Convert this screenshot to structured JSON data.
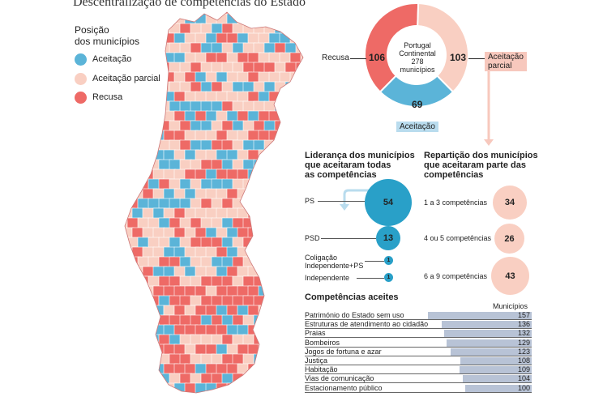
{
  "title": "Descentralização de competências do Estado",
  "legend": {
    "title_line1": "Posição",
    "title_line2": "dos municípios",
    "items": [
      {
        "label": "Aceitação",
        "color": "#5bb4d8"
      },
      {
        "label": "Aceitação parcial",
        "color": "#f9cfc2"
      },
      {
        "label": "Recusa",
        "color": "#ee6a66"
      }
    ]
  },
  "donut": {
    "center_line1": "Portugal",
    "center_line2": "Continental",
    "center_line3": "278",
    "center_line4": "municípios",
    "recusa_label": "Recusa",
    "parcial_label_1": "Aceitação",
    "parcial_label_2": "parcial",
    "aceitacao_label": "Aceitação",
    "values": {
      "recusa": 106,
      "parcial": 103,
      "aceitacao": 69
    }
  },
  "leadership": {
    "title_1": "Liderança dos municípios",
    "title_2": "que aceitaram todas",
    "title_3": "as competências",
    "items": [
      {
        "label": "PS",
        "value": 54
      },
      {
        "label": "PSD",
        "value": 13
      },
      {
        "label_1": "Coligação",
        "label_2": "Independente+PS",
        "value": 1
      },
      {
        "label": "Independente",
        "value": 1
      }
    ]
  },
  "partial": {
    "title_1": "Repartição dos municípios",
    "title_2": "que aceitaram parte das",
    "title_3": "competências",
    "items": [
      {
        "label": "1 a 3 competências",
        "value": 34
      },
      {
        "label": "4 ou 5 competências",
        "value": 26
      },
      {
        "label": "6 a 9 competências",
        "value": 43
      }
    ]
  },
  "competencias": {
    "title": "Competências aceites",
    "subtitle": "Municípios"
  },
  "colors": {
    "aceitacao": "#5bb4d8",
    "parcial": "#f9cfc2",
    "recusa": "#ee6a66",
    "bubble_blue": "#29a0c8",
    "bar": "#b8c3d6"
  },
  "chart_data": [
    {
      "type": "pie",
      "title": "Portugal Continental 278 municípios",
      "categories": [
        "Recusa",
        "Aceitação parcial",
        "Aceitação"
      ],
      "values": [
        106,
        103,
        69
      ]
    },
    {
      "type": "scatter",
      "title": "Liderança dos municípios que aceitaram todas as competências",
      "categories": [
        "PS",
        "PSD",
        "Coligação Independente+PS",
        "Independente"
      ],
      "values": [
        54,
        13,
        1,
        1
      ]
    },
    {
      "type": "scatter",
      "title": "Repartição dos municípios que aceitaram parte das competências",
      "categories": [
        "1 a 3 competências",
        "4 ou 5 competências",
        "6 a 9 competências"
      ],
      "values": [
        34,
        26,
        43
      ]
    },
    {
      "type": "bar",
      "title": "Competências aceites",
      "ylabel": "Municípios",
      "categories": [
        "Património do Estado sem uso",
        "Estruturas de atendimento ao cidadão",
        "Praias",
        "Bombeiros",
        "Jogos de fortuna e azar",
        "Justiça",
        "Habitação",
        "Vias de comunicação",
        "Estacionamento público"
      ],
      "values": [
        157,
        136,
        132,
        129,
        123,
        108,
        109,
        104,
        100
      ],
      "ylim": [
        0,
        157
      ]
    }
  ]
}
